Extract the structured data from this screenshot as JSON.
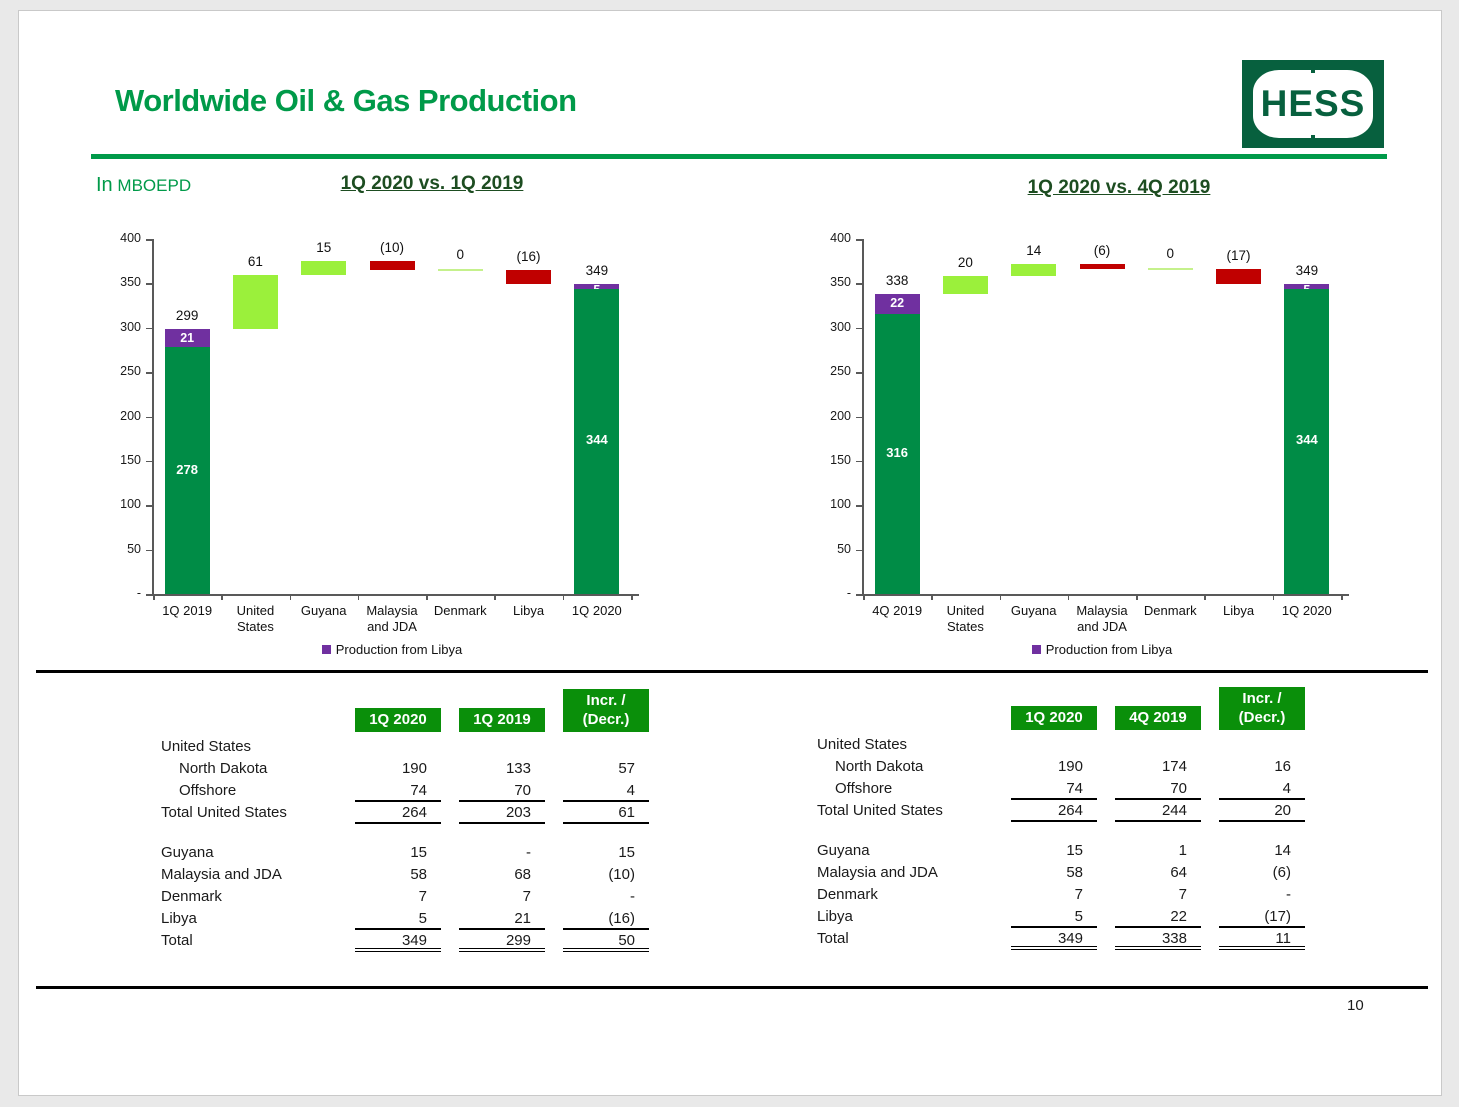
{
  "slide": {
    "title": "Worldwide Oil & Gas Production",
    "unit_prefix": "In",
    "unit_name": "MBOEPD",
    "logo_text": "HESS",
    "page_number": "10"
  },
  "colors": {
    "hess_green": "#009A49",
    "title_dark_green": "#1D4D21",
    "dark_green_bar": "#008C46",
    "light_green_bar": "#9BF03B",
    "pale_green_zero": "#C5F18C",
    "red_bar": "#C00000",
    "purple_bar": "#7030A0",
    "table_header_green": "#0A8F0A",
    "logo_green": "#07603E",
    "axis_gray": "#595959"
  },
  "chart_data": [
    {
      "type": "waterfall",
      "title": "1Q 2020 vs. 1Q 2019",
      "legend": "Production from Libya",
      "ylim": [
        0,
        400
      ],
      "grid": false,
      "legend_position": "bottom",
      "yticks": [
        {
          "label": "400",
          "value": 400
        },
        {
          "label": "350",
          "value": 350
        },
        {
          "label": "300",
          "value": 300
        },
        {
          "label": "250",
          "value": 250
        },
        {
          "label": "200",
          "value": 200
        },
        {
          "label": "150",
          "value": 150
        },
        {
          "label": "100",
          "value": 100
        },
        {
          "label": "50",
          "value": 50
        },
        {
          "label": "-",
          "value": 0
        }
      ],
      "bars": [
        {
          "label_lines": [
            "1Q 2019"
          ],
          "kind": "stack",
          "base": 278,
          "top": 21,
          "total": 299,
          "base_label": "278",
          "top_label": "21",
          "total_label": "299"
        },
        {
          "label_lines": [
            "United",
            "States"
          ],
          "kind": "float",
          "start": 299,
          "end": 360,
          "value_label": "61",
          "color": "light_green"
        },
        {
          "label_lines": [
            "Guyana"
          ],
          "kind": "float",
          "start": 360,
          "end": 375,
          "value_label": "15",
          "color": "light_green"
        },
        {
          "label_lines": [
            "Malaysia",
            "and JDA"
          ],
          "kind": "float",
          "start": 375,
          "end": 365,
          "value_label": "(10)",
          "color": "red"
        },
        {
          "label_lines": [
            "Denmark"
          ],
          "kind": "zero",
          "at": 365,
          "value_label": "0"
        },
        {
          "label_lines": [
            "Libya"
          ],
          "kind": "float",
          "start": 365,
          "end": 349,
          "value_label": "(16)",
          "color": "red"
        },
        {
          "label_lines": [
            "1Q 2020"
          ],
          "kind": "stack",
          "base": 344,
          "top": 5,
          "total": 349,
          "base_label": "344",
          "top_label": "5",
          "total_label": "349"
        }
      ]
    },
    {
      "type": "waterfall",
      "title": "1Q 2020 vs. 4Q 2019",
      "legend": "Production from Libya",
      "ylim": [
        0,
        400
      ],
      "grid": false,
      "legend_position": "bottom",
      "yticks": [
        {
          "label": "400",
          "value": 400
        },
        {
          "label": "350",
          "value": 350
        },
        {
          "label": "300",
          "value": 300
        },
        {
          "label": "250",
          "value": 250
        },
        {
          "label": "200",
          "value": 200
        },
        {
          "label": "150",
          "value": 150
        },
        {
          "label": "100",
          "value": 100
        },
        {
          "label": "50",
          "value": 50
        },
        {
          "label": "-",
          "value": 0
        }
      ],
      "bars": [
        {
          "label_lines": [
            "4Q 2019"
          ],
          "kind": "stack",
          "base": 316,
          "top": 22,
          "total": 338,
          "base_label": "316",
          "top_label": "22",
          "total_label": "338"
        },
        {
          "label_lines": [
            "United",
            "States"
          ],
          "kind": "float",
          "start": 338,
          "end": 358,
          "value_label": "20",
          "color": "light_green"
        },
        {
          "label_lines": [
            "Guyana"
          ],
          "kind": "float",
          "start": 358,
          "end": 372,
          "value_label": "14",
          "color": "light_green"
        },
        {
          "label_lines": [
            "Malaysia",
            "and JDA"
          ],
          "kind": "float",
          "start": 372,
          "end": 366,
          "value_label": "(6)",
          "color": "red"
        },
        {
          "label_lines": [
            "Denmark"
          ],
          "kind": "zero",
          "at": 366,
          "value_label": "0"
        },
        {
          "label_lines": [
            "Libya"
          ],
          "kind": "float",
          "start": 366,
          "end": 349,
          "value_label": "(17)",
          "color": "red"
        },
        {
          "label_lines": [
            "1Q 2020"
          ],
          "kind": "stack",
          "base": 344,
          "top": 5,
          "total": 349,
          "base_label": "344",
          "top_label": "5",
          "total_label": "349"
        }
      ]
    }
  ],
  "tables": [
    {
      "name": "1Q 2020 vs. 1Q 2019",
      "headers": [
        [
          "1Q 2020"
        ],
        [
          "1Q 2019"
        ],
        [
          "Incr. /",
          "(Decr.)"
        ]
      ],
      "rows": [
        {
          "label": "United States",
          "values": [
            "",
            "",
            ""
          ]
        },
        {
          "label": "North Dakota",
          "indent": 1,
          "values": [
            "190",
            "133",
            "57"
          ]
        },
        {
          "label": "Offshore",
          "indent": 1,
          "values": [
            "74",
            "70",
            "4"
          ],
          "rule": "single"
        },
        {
          "label": "Total United States",
          "values": [
            "264",
            "203",
            "61"
          ],
          "rule": "single"
        },
        {
          "spacer": true
        },
        {
          "label": "Guyana",
          "values": [
            "15",
            "-",
            "15"
          ]
        },
        {
          "label": "Malaysia and JDA",
          "values": [
            "58",
            "68",
            "(10)"
          ]
        },
        {
          "label": "Denmark",
          "values": [
            "7",
            "7",
            "-"
          ]
        },
        {
          "label": "Libya",
          "values": [
            "5",
            "21",
            "(16)"
          ],
          "rule": "single"
        },
        {
          "label": "Total",
          "values": [
            "349",
            "299",
            "50"
          ],
          "rule": "double"
        }
      ]
    },
    {
      "name": "1Q 2020 vs. 4Q 2019",
      "headers": [
        [
          "1Q 2020"
        ],
        [
          "4Q 2019"
        ],
        [
          "Incr. /",
          "(Decr.)"
        ]
      ],
      "rows": [
        {
          "label": "United States",
          "values": [
            "",
            "",
            ""
          ]
        },
        {
          "label": "North Dakota",
          "indent": 1,
          "values": [
            "190",
            "174",
            "16"
          ]
        },
        {
          "label": "Offshore",
          "indent": 1,
          "values": [
            "74",
            "70",
            "4"
          ],
          "rule": "single"
        },
        {
          "label": "Total United States",
          "values": [
            "264",
            "244",
            "20"
          ],
          "rule": "single"
        },
        {
          "spacer": true
        },
        {
          "label": "Guyana",
          "values": [
            "15",
            "1",
            "14"
          ]
        },
        {
          "label": "Malaysia and JDA",
          "values": [
            "58",
            "64",
            "(6)"
          ]
        },
        {
          "label": "Denmark",
          "values": [
            "7",
            "7",
            "-"
          ]
        },
        {
          "label": "Libya",
          "values": [
            "5",
            "22",
            "(17)"
          ],
          "rule": "single"
        },
        {
          "label": "Total",
          "values": [
            "349",
            "338",
            "11"
          ],
          "rule": "double"
        }
      ]
    }
  ]
}
